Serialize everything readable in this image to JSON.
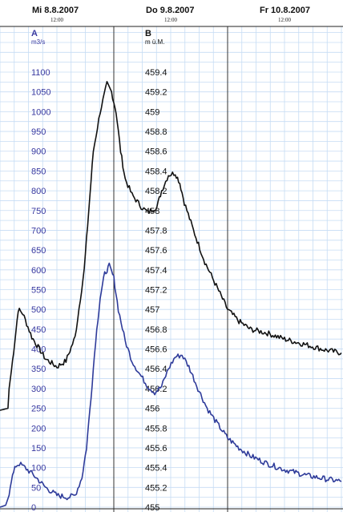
{
  "chart_data": {
    "type": "line",
    "dates": [
      {
        "date": "Mi  8.8.2007",
        "time": "12:00"
      },
      {
        "date": "Do  9.8.2007",
        "time": "12:00"
      },
      {
        "date": "Fr  10.8.2007",
        "time": "12:00"
      }
    ],
    "x_range_days": [
      0,
      3
    ],
    "axis_a": {
      "name": "A",
      "unit": "m3/s",
      "ticks": [
        "0",
        "50",
        "100",
        "150",
        "200",
        "250",
        "300",
        "350",
        "400",
        "450",
        "500",
        "550",
        "600",
        "650",
        "700",
        "750",
        "800",
        "850",
        "900",
        "950",
        "1000",
        "1050",
        "1100"
      ],
      "range": [
        0,
        1100
      ]
    },
    "axis_b": {
      "name": "B",
      "unit": "m ü.M.",
      "ticks": [
        "455",
        "455.2",
        "455.4",
        "455.6",
        "455.8",
        "456",
        "456.2",
        "456.4",
        "456.6",
        "456.8",
        "457",
        "457.2",
        "457.4",
        "457.6",
        "457.8",
        "458",
        "458.2",
        "458.4",
        "458.6",
        "458.8",
        "459",
        "459.2",
        "459.4"
      ],
      "range": [
        455,
        459.4
      ]
    },
    "series": [
      {
        "axis": "A",
        "color": "#111111",
        "points": [
          [
            0,
            245
          ],
          [
            0.07,
            250
          ],
          [
            0.08,
            300
          ],
          [
            0.1,
            345
          ],
          [
            0.12,
            395
          ],
          [
            0.14,
            445
          ],
          [
            0.16,
            500
          ],
          [
            0.2,
            490
          ],
          [
            0.28,
            430
          ],
          [
            0.4,
            375
          ],
          [
            0.5,
            355
          ],
          [
            0.58,
            370
          ],
          [
            0.66,
            430
          ],
          [
            0.74,
            600
          ],
          [
            0.78,
            750
          ],
          [
            0.82,
            900
          ],
          [
            0.88,
            1000
          ],
          [
            0.94,
            1070
          ],
          [
            0.98,
            1050
          ],
          [
            1.02,
            1000
          ],
          [
            1.06,
            900
          ],
          [
            1.1,
            830
          ],
          [
            1.16,
            790
          ],
          [
            1.24,
            760
          ],
          [
            1.3,
            745
          ],
          [
            1.38,
            760
          ],
          [
            1.42,
            800
          ],
          [
            1.48,
            840
          ],
          [
            1.54,
            845
          ],
          [
            1.58,
            820
          ],
          [
            1.62,
            770
          ],
          [
            1.7,
            700
          ],
          [
            1.8,
            620
          ],
          [
            1.9,
            560
          ],
          [
            2.0,
            500
          ],
          [
            2.1,
            470
          ],
          [
            2.2,
            450
          ],
          [
            2.35,
            440
          ],
          [
            2.5,
            425
          ],
          [
            2.7,
            410
          ],
          [
            2.85,
            398
          ],
          [
            3.0,
            390
          ]
        ]
      },
      {
        "axis": "A",
        "color": "#2e3b9a",
        "points": [
          [
            0,
            0
          ],
          [
            0.05,
            5
          ],
          [
            0.08,
            30
          ],
          [
            0.1,
            70
          ],
          [
            0.14,
            105
          ],
          [
            0.17,
            110
          ],
          [
            0.22,
            100
          ],
          [
            0.3,
            80
          ],
          [
            0.4,
            50
          ],
          [
            0.5,
            30
          ],
          [
            0.6,
            25
          ],
          [
            0.66,
            30
          ],
          [
            0.72,
            75
          ],
          [
            0.76,
            150
          ],
          [
            0.8,
            280
          ],
          [
            0.84,
            420
          ],
          [
            0.88,
            530
          ],
          [
            0.92,
            590
          ],
          [
            0.96,
            610
          ],
          [
            1.0,
            580
          ],
          [
            1.04,
            500
          ],
          [
            1.1,
            420
          ],
          [
            1.16,
            370
          ],
          [
            1.22,
            340
          ],
          [
            1.3,
            305
          ],
          [
            1.36,
            290
          ],
          [
            1.42,
            305
          ],
          [
            1.48,
            350
          ],
          [
            1.54,
            380
          ],
          [
            1.6,
            385
          ],
          [
            1.66,
            355
          ],
          [
            1.74,
            300
          ],
          [
            1.82,
            250
          ],
          [
            1.9,
            215
          ],
          [
            2.0,
            175
          ],
          [
            2.1,
            150
          ],
          [
            2.2,
            130
          ],
          [
            2.35,
            110
          ],
          [
            2.5,
            95
          ],
          [
            2.7,
            80
          ],
          [
            2.85,
            72
          ],
          [
            3.0,
            65
          ]
        ]
      }
    ]
  }
}
